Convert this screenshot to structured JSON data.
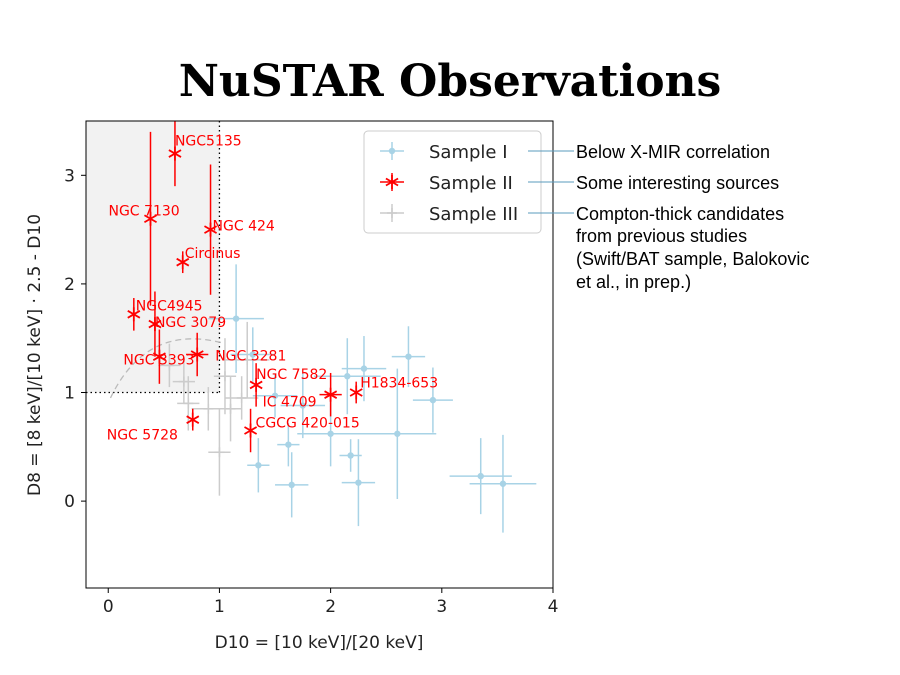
{
  "slide": {
    "title": "NuSTAR Observations"
  },
  "annotations": {
    "sample1": [
      "Below X-MIR correlation"
    ],
    "sample2": [
      "Some interesting sources"
    ],
    "sample3": [
      "Compton-thick candidates",
      "from previous studies",
      "(Swift/BAT sample, Balokovic",
      "et al., in prep.)"
    ]
  },
  "chart_data": {
    "type": "scatter",
    "xlabel": "D10 = [10 keV]/[20 keV]",
    "ylabel": "D8 = [8 keV]/[10 keV] · 2.5 - D10",
    "xlim": [
      -0.2,
      4.0
    ],
    "ylim": [
      -0.8,
      3.5
    ],
    "xticks": [
      "0",
      "1",
      "2",
      "3",
      "4"
    ],
    "yticks": [
      "0",
      "1",
      "2",
      "3"
    ],
    "legend_position": "top-right",
    "colors": {
      "sample1": "#a8d3e6",
      "sample2": "#ff0000",
      "sample3": "#cccccc",
      "guide": "#000000",
      "dashed": "#bbbbbb",
      "region": "#f2f2f2"
    },
    "series": [
      {
        "name": "Sample I",
        "marker": "dot",
        "points": [
          {
            "x": 1.15,
            "y": 1.68,
            "xerr": 0.25,
            "yerr": 0.5
          },
          {
            "x": 1.3,
            "y": 1.35,
            "xerr": 0.2,
            "yerr": 0.25
          },
          {
            "x": 1.5,
            "y": 0.97,
            "xerr": 0.2,
            "yerr": 0.2
          },
          {
            "x": 1.75,
            "y": 0.88,
            "xerr": 0.2,
            "yerr": 0.3
          },
          {
            "x": 1.62,
            "y": 0.52,
            "xerr": 0.1,
            "yerr": 0.2
          },
          {
            "x": 1.65,
            "y": 0.15,
            "xerr": 0.15,
            "yerr": 0.3
          },
          {
            "x": 1.35,
            "y": 0.33,
            "xerr": 0.1,
            "yerr": 0.25
          },
          {
            "x": 2.0,
            "y": 0.62,
            "xerr": 0.3,
            "yerr": 0.3
          },
          {
            "x": 2.15,
            "y": 1.15,
            "xerr": 0.3,
            "yerr": 0.35
          },
          {
            "x": 2.3,
            "y": 1.22,
            "xerr": 0.2,
            "yerr": 0.3
          },
          {
            "x": 2.18,
            "y": 0.42,
            "xerr": 0.1,
            "yerr": 0.15
          },
          {
            "x": 2.25,
            "y": 0.17,
            "xerr": 0.15,
            "yerr": 0.4
          },
          {
            "x": 2.6,
            "y": 0.62,
            "xerr": 0.35,
            "yerr": 0.6
          },
          {
            "x": 2.7,
            "y": 1.33,
            "xerr": 0.15,
            "yerr": 0.28
          },
          {
            "x": 2.92,
            "y": 0.93,
            "xerr": 0.18,
            "yerr": 0.3
          },
          {
            "x": 3.35,
            "y": 0.23,
            "xerr": 0.28,
            "yerr": 0.35
          },
          {
            "x": 3.55,
            "y": 0.16,
            "xerr": 0.3,
            "yerr": 0.45
          }
        ]
      },
      {
        "name": "Sample II",
        "marker": "star",
        "points": [
          {
            "x": 0.6,
            "y": 3.2,
            "yerr": 0.3,
            "label": "NGC5135"
          },
          {
            "x": 0.38,
            "y": 2.6,
            "yerr": 0.8,
            "label": "NGC 7130"
          },
          {
            "x": 0.92,
            "y": 2.5,
            "yerr": 0.6,
            "label": "NGC 424"
          },
          {
            "x": 0.67,
            "y": 2.2,
            "yerr": 0.1,
            "label": "Circinus"
          },
          {
            "x": 0.23,
            "y": 1.72,
            "yerr": 0.15,
            "label": "NGC4945"
          },
          {
            "x": 0.42,
            "y": 1.63,
            "yerr": 0.3,
            "label": "NGC 3079"
          },
          {
            "x": 0.46,
            "y": 1.33,
            "yerr": 0.25,
            "label": "NGC 3393"
          },
          {
            "x": 0.8,
            "y": 1.35,
            "xerr": 0.1,
            "yerr": 0.2,
            "label": "NGC 3281"
          },
          {
            "x": 1.33,
            "y": 1.07,
            "yerr": 0.2,
            "label": "NGC 7582"
          },
          {
            "x": 2.23,
            "y": 1.0,
            "yerr": 0.1,
            "label": "H1834-653"
          },
          {
            "x": 2.0,
            "y": 0.98,
            "xerr": 0.1,
            "yerr": 0.2,
            "label": "IC 4709"
          },
          {
            "x": 0.76,
            "y": 0.75,
            "yerr": 0.1,
            "label": "NGC 5728"
          },
          {
            "x": 1.28,
            "y": 0.65,
            "yerr": 0.2,
            "label": "CGCG 420-015"
          }
        ]
      },
      {
        "name": "Sample III",
        "marker": "plus",
        "points": [
          {
            "x": 0.68,
            "y": 1.1,
            "xerr": 0.1,
            "yerr": 0.2
          },
          {
            "x": 0.72,
            "y": 0.9,
            "xerr": 0.1,
            "yerr": 0.25
          },
          {
            "x": 0.9,
            "y": 0.85,
            "xerr": 0.15,
            "yerr": 0.2
          },
          {
            "x": 1.0,
            "y": 0.45,
            "xerr": 0.1,
            "yerr": 0.4
          },
          {
            "x": 1.1,
            "y": 0.85,
            "xerr": 0.1,
            "yerr": 0.3
          },
          {
            "x": 1.2,
            "y": 0.95,
            "xerr": 0.15,
            "yerr": 0.2
          },
          {
            "x": 1.05,
            "y": 1.15,
            "xerr": 0.1,
            "yerr": 0.35
          },
          {
            "x": 1.25,
            "y": 1.3,
            "xerr": 0.2,
            "yerr": 0.35
          },
          {
            "x": 0.55,
            "y": 1.25,
            "xerr": 0.1,
            "yerr": 0.2
          }
        ]
      }
    ]
  }
}
